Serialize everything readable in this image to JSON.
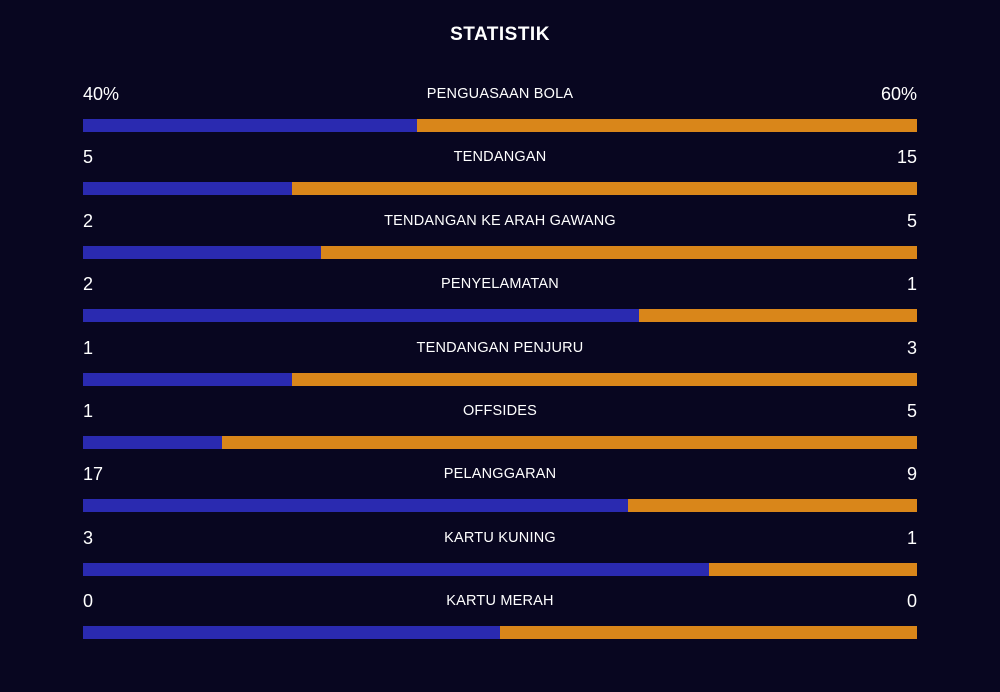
{
  "title": "STATISTIK",
  "colors": {
    "background": "#080620",
    "home": "#2a2ab0",
    "away": "#d9861a",
    "text": "#ffffff"
  },
  "stats": [
    {
      "label": "PENGUASAAN BOLA",
      "home": "40%",
      "away": "60%",
      "home_share": 0.4
    },
    {
      "label": "TENDANGAN",
      "home": "5",
      "away": "15",
      "home_share": 0.25
    },
    {
      "label": "TENDANGAN KE ARAH GAWANG",
      "home": "2",
      "away": "5",
      "home_share": 0.2857
    },
    {
      "label": "PENYELAMATAN",
      "home": "2",
      "away": "1",
      "home_share": 0.6667
    },
    {
      "label": "TENDANGAN PENJURU",
      "home": "1",
      "away": "3",
      "home_share": 0.25
    },
    {
      "label": "OFFSIDES",
      "home": "1",
      "away": "5",
      "home_share": 0.1667
    },
    {
      "label": "PELANGGARAN",
      "home": "17",
      "away": "9",
      "home_share": 0.6538
    },
    {
      "label": "KARTU KUNING",
      "home": "3",
      "away": "1",
      "home_share": 0.75
    },
    {
      "label": "KARTU MERAH",
      "home": "0",
      "away": "0",
      "home_share": 0.5
    }
  ]
}
